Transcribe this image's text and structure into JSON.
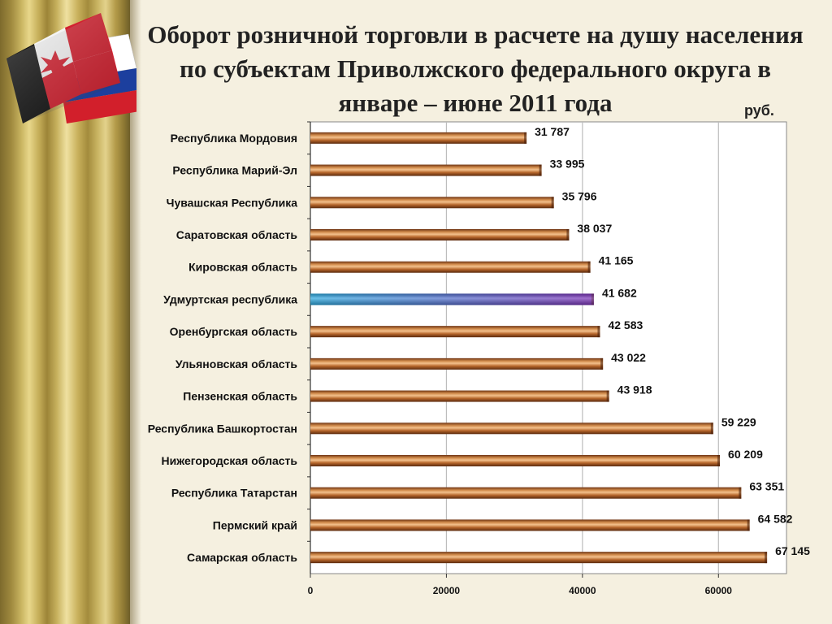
{
  "title": "Оборот розничной торговли в расчете на душу населения по субъектам Приволжского федерального округа в январе – июне 2011 года",
  "unit": "руб.",
  "chart_data": {
    "type": "bar",
    "orientation": "horizontal",
    "categories": [
      "Республика Мордовия",
      "Республика Марий-Эл",
      "Чувашская Республика",
      "Саратовская область",
      "Кировская область",
      "Удмуртская республика",
      "Оренбургская область",
      "Ульяновская область",
      "Пензенская область",
      "Республика Башкортостан",
      "Нижегородская область",
      "Республика Татарстан",
      "Пермский край",
      "Самарская область"
    ],
    "values": [
      31787,
      33995,
      35796,
      38037,
      41165,
      41682,
      42583,
      43022,
      43918,
      59229,
      60209,
      63351,
      64582,
      67145
    ],
    "value_labels": [
      "31 787",
      "33 995",
      "35 796",
      "38 037",
      "41 165",
      "41 682",
      "42 583",
      "43 022",
      "43 918",
      "59 229",
      "60 209",
      "63 351",
      "64 582",
      "67 145"
    ],
    "highlight": "Удмуртская республика",
    "xlim": [
      0,
      70000
    ],
    "xticks": [
      0,
      20000,
      40000,
      60000
    ],
    "grid": true,
    "colors": {
      "bar": "#b5652a",
      "highlight_start": "#29a8e0",
      "highlight_end": "#7b2fb8",
      "grid": "#bdbdbd",
      "axis": "#333333"
    }
  }
}
